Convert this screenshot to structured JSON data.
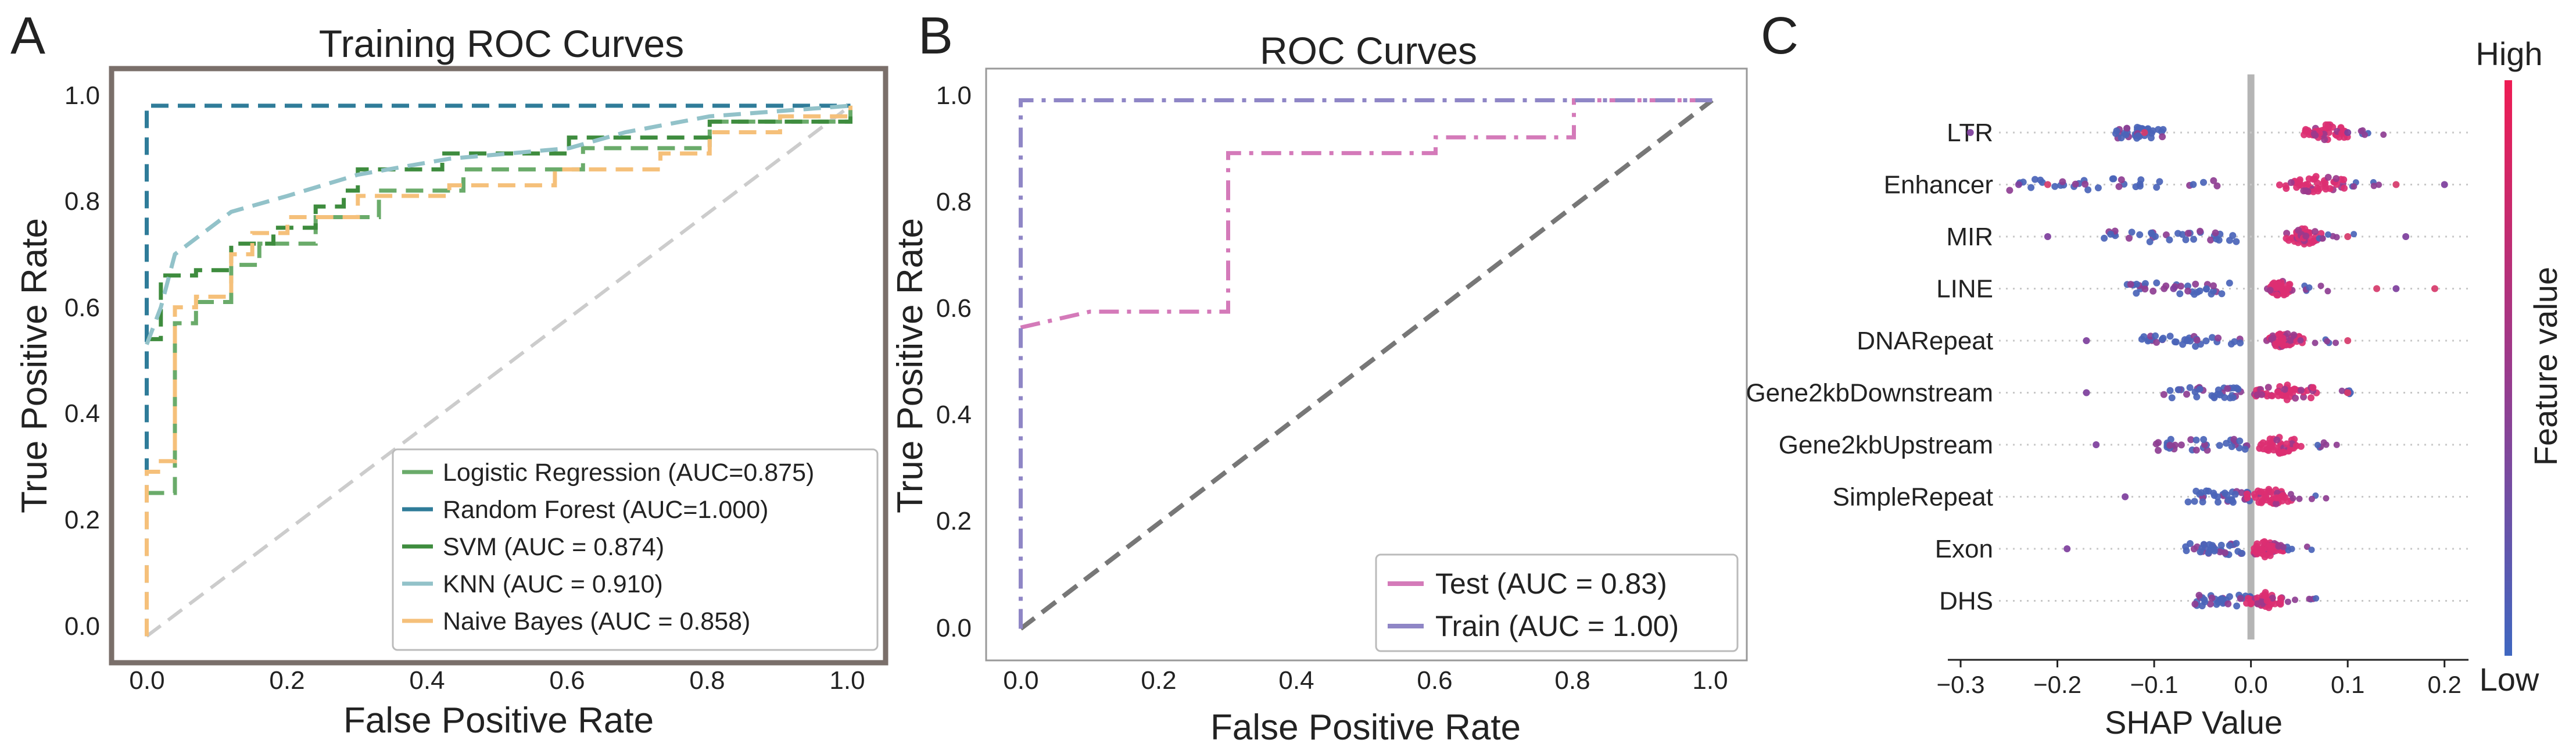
{
  "panels": {
    "a": {
      "letter": "A",
      "title": "Training ROC Curves",
      "xlabel": "False Positive Rate",
      "ylabel": "True Positive Rate",
      "ticks": [
        "0.0",
        "0.2",
        "0.4",
        "0.6",
        "0.8",
        "1.0"
      ],
      "legend": [
        "Logistic Regression (AUC=0.875)",
        "Random Forest (AUC=1.000)",
        "SVM (AUC = 0.874)",
        "KNN (AUC = 0.910)",
        "Naive Bayes (AUC = 0.858)"
      ]
    },
    "b": {
      "letter": "B",
      "title": "ROC Curves",
      "xlabel": "False Positive Rate",
      "ylabel": "True Positive Rate",
      "ticks": [
        "0.0",
        "0.2",
        "0.4",
        "0.6",
        "0.8",
        "1.0"
      ],
      "legend": [
        "Test (AUC = 0.83)",
        "Train (AUC = 1.00)"
      ]
    },
    "c": {
      "letter": "C",
      "xlabel": "SHAP Value",
      "xticks": [
        "−0.3",
        "−0.2",
        "−0.1",
        "0.0",
        "0.1",
        "0.2"
      ],
      "colorbar_high": "High",
      "colorbar_low": "Low",
      "colorbar_label": "Feature value"
    }
  },
  "chart_data": [
    {
      "type": "line",
      "title": "Training ROC Curves",
      "xlabel": "False Positive Rate",
      "ylabel": "True Positive Rate",
      "xlim": [
        -0.05,
        1.05
      ],
      "ylim": [
        -0.05,
        1.07
      ],
      "series": [
        {
          "name": "Logistic Regression (AUC=0.875)",
          "color": "#6aab6a",
          "dash": "dashed",
          "points": [
            [
              0,
              0.27
            ],
            [
              0.04,
              0.27
            ],
            [
              0.04,
              0.59
            ],
            [
              0.07,
              0.59
            ],
            [
              0.07,
              0.63
            ],
            [
              0.12,
              0.63
            ],
            [
              0.12,
              0.7
            ],
            [
              0.16,
              0.7
            ],
            [
              0.16,
              0.74
            ],
            [
              0.24,
              0.74
            ],
            [
              0.24,
              0.79
            ],
            [
              0.33,
              0.79
            ],
            [
              0.33,
              0.84
            ],
            [
              0.45,
              0.84
            ],
            [
              0.45,
              0.88
            ],
            [
              0.62,
              0.88
            ],
            [
              0.62,
              0.92
            ],
            [
              0.8,
              0.92
            ],
            [
              0.8,
              0.97
            ],
            [
              1.0,
              0.97
            ],
            [
              1.0,
              1.0
            ]
          ]
        },
        {
          "name": "Random Forest (AUC=1.000)",
          "color": "#2f7c99",
          "dash": "dashed",
          "points": [
            [
              0,
              0
            ],
            [
              0,
              1.0
            ],
            [
              1.0,
              1.0
            ]
          ]
        },
        {
          "name": "SVM (AUC = 0.874)",
          "color": "#3e8c3e",
          "dash": "dashed",
          "points": [
            [
              0,
              0.56
            ],
            [
              0.02,
              0.56
            ],
            [
              0.02,
              0.68
            ],
            [
              0.07,
              0.68
            ],
            [
              0.07,
              0.69
            ],
            [
              0.12,
              0.69
            ],
            [
              0.12,
              0.74
            ],
            [
              0.18,
              0.74
            ],
            [
              0.18,
              0.77
            ],
            [
              0.24,
              0.77
            ],
            [
              0.24,
              0.81
            ],
            [
              0.28,
              0.81
            ],
            [
              0.28,
              0.84
            ],
            [
              0.3,
              0.84
            ],
            [
              0.3,
              0.88
            ],
            [
              0.42,
              0.88
            ],
            [
              0.42,
              0.91
            ],
            [
              0.6,
              0.91
            ],
            [
              0.6,
              0.94
            ],
            [
              0.8,
              0.94
            ],
            [
              0.8,
              0.97
            ],
            [
              1.0,
              0.97
            ],
            [
              1.0,
              1.0
            ]
          ]
        },
        {
          "name": "KNN (AUC = 0.910)",
          "color": "#92c2c9",
          "dash": "dashed",
          "points": [
            [
              0,
              0.55
            ],
            [
              0.02,
              0.62
            ],
            [
              0.04,
              0.72
            ],
            [
              0.07,
              0.75
            ],
            [
              0.12,
              0.8
            ],
            [
              0.2,
              0.83
            ],
            [
              0.3,
              0.87
            ],
            [
              0.43,
              0.9
            ],
            [
              0.6,
              0.92
            ],
            [
              0.68,
              0.95
            ],
            [
              0.8,
              0.98
            ],
            [
              1.0,
              1.0
            ]
          ]
        },
        {
          "name": "Naive Bayes (AUC = 0.858)",
          "color": "#f5c07a",
          "dash": "dashed",
          "points": [
            [
              0,
              0
            ],
            [
              0,
              0.31
            ],
            [
              0.02,
              0.31
            ],
            [
              0.02,
              0.33
            ],
            [
              0.04,
              0.33
            ],
            [
              0.04,
              0.62
            ],
            [
              0.07,
              0.62
            ],
            [
              0.07,
              0.64
            ],
            [
              0.12,
              0.64
            ],
            [
              0.12,
              0.72
            ],
            [
              0.15,
              0.72
            ],
            [
              0.15,
              0.76
            ],
            [
              0.2,
              0.76
            ],
            [
              0.2,
              0.79
            ],
            [
              0.3,
              0.79
            ],
            [
              0.3,
              0.83
            ],
            [
              0.43,
              0.83
            ],
            [
              0.43,
              0.85
            ],
            [
              0.58,
              0.85
            ],
            [
              0.58,
              0.88
            ],
            [
              0.73,
              0.88
            ],
            [
              0.73,
              0.91
            ],
            [
              0.8,
              0.91
            ],
            [
              0.8,
              0.95
            ],
            [
              0.9,
              0.95
            ],
            [
              0.9,
              0.98
            ],
            [
              1.0,
              0.98
            ],
            [
              1.0,
              1.0
            ]
          ]
        },
        {
          "name": "chance",
          "color": "#cccccc",
          "dash": "dashed",
          "points": [
            [
              0,
              0
            ],
            [
              1,
              1
            ]
          ]
        }
      ]
    },
    {
      "type": "line",
      "title": "ROC Curves",
      "xlabel": "False Positive Rate",
      "ylabel": "True Positive Rate",
      "xlim": [
        -0.05,
        1.05
      ],
      "ylim": [
        -0.06,
        1.06
      ],
      "series": [
        {
          "name": "Test (AUC = 0.83)",
          "color": "#d47ab9",
          "dash": "dashdot",
          "points": [
            [
              0,
              0.57
            ],
            [
              0.1,
              0.6
            ],
            [
              0.3,
              0.6
            ],
            [
              0.3,
              0.9
            ],
            [
              0.6,
              0.9
            ],
            [
              0.6,
              0.93
            ],
            [
              0.8,
              0.93
            ],
            [
              0.8,
              1.0
            ],
            [
              1.0,
              1.0
            ]
          ]
        },
        {
          "name": "Train (AUC = 1.00)",
          "color": "#8f86c6",
          "dash": "dashdot",
          "points": [
            [
              0,
              0
            ],
            [
              0,
              1.0
            ],
            [
              1.0,
              1.0
            ]
          ]
        },
        {
          "name": "chance",
          "color": "#777777",
          "dash": "dashed",
          "points": [
            [
              0,
              0
            ],
            [
              1,
              1
            ]
          ]
        }
      ]
    },
    {
      "type": "scatter",
      "xlabel": "SHAP Value",
      "xlim": [
        -0.3,
        0.22
      ],
      "features": [
        {
          "name": "LTR",
          "pos": [
            0.06,
            0.1
          ],
          "neg": [
            -0.14,
            -0.09
          ],
          "outliers": [
            -0.29,
            -0.11,
            0.1
          ]
        },
        {
          "name": "Enhancer",
          "pos": [
            0.04,
            0.1
          ],
          "neg": [
            -0.25,
            -0.03
          ],
          "outliers": [
            -0.24,
            -0.21,
            0.2,
            0.15
          ]
        },
        {
          "name": "MIR",
          "pos": [
            0.04,
            0.07
          ],
          "neg": [
            -0.17,
            -0.01
          ],
          "outliers": [
            -0.21,
            0.1,
            0.16
          ]
        },
        {
          "name": "LINE",
          "pos": [
            0.02,
            0.04
          ],
          "neg": [
            -0.13,
            -0.02
          ],
          "outliers": [
            -0.08,
            0.13,
            0.15,
            0.19
          ]
        },
        {
          "name": "DNARepeat",
          "pos": [
            0.02,
            0.05
          ],
          "neg": [
            -0.12,
            -0.01
          ],
          "outliers": [
            -0.17,
            0.1
          ]
        },
        {
          "name": "Gene2kbDownstream",
          "pos": [
            0.01,
            0.07
          ],
          "neg": [
            -0.09,
            -0.01
          ],
          "outliers": [
            -0.17,
            0.1
          ]
        },
        {
          "name": "Gene2kbUpstream",
          "pos": [
            0.01,
            0.05
          ],
          "neg": [
            -0.1,
            0.0
          ],
          "outliers": [
            -0.16
          ]
        },
        {
          "name": "SimpleRepeat",
          "pos": [
            0.0,
            0.04
          ],
          "neg": [
            -0.07,
            0.0
          ],
          "outliers": [
            -0.13
          ]
        },
        {
          "name": "Exon",
          "pos": [
            0.0,
            0.03
          ],
          "neg": [
            -0.07,
            0.0
          ],
          "outliers": [
            -0.19
          ]
        },
        {
          "name": "DHS",
          "pos": [
            0.0,
            0.03
          ],
          "neg": [
            -0.06,
            0.0
          ],
          "outliers": []
        }
      ]
    }
  ]
}
